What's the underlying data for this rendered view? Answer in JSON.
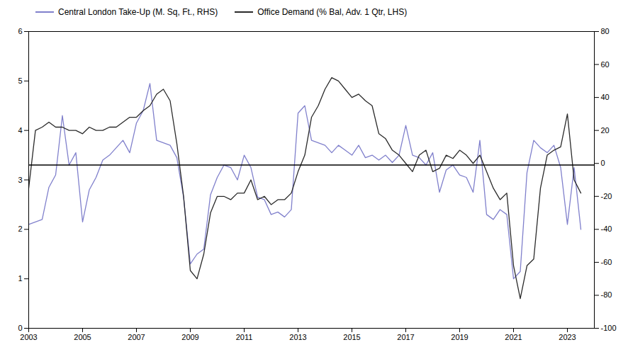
{
  "chart_data": {
    "type": "line",
    "x": [
      2003,
      2003.25,
      2003.5,
      2003.75,
      2004,
      2004.25,
      2004.5,
      2004.75,
      2005,
      2005.25,
      2005.5,
      2005.75,
      2006,
      2006.25,
      2006.5,
      2006.75,
      2007,
      2007.25,
      2007.5,
      2007.75,
      2008,
      2008.25,
      2008.5,
      2008.75,
      2009,
      2009.25,
      2009.5,
      2009.75,
      2010,
      2010.25,
      2010.5,
      2010.75,
      2011,
      2011.25,
      2011.5,
      2011.75,
      2012,
      2012.25,
      2012.5,
      2012.75,
      2013,
      2013.25,
      2013.5,
      2013.75,
      2014,
      2014.25,
      2014.5,
      2014.75,
      2015,
      2015.25,
      2015.5,
      2015.75,
      2016,
      2016.25,
      2016.5,
      2016.75,
      2017,
      2017.25,
      2017.5,
      2017.75,
      2018,
      2018.25,
      2018.5,
      2018.75,
      2019,
      2019.25,
      2019.5,
      2019.75,
      2020,
      2020.25,
      2020.5,
      2020.75,
      2021,
      2021.25,
      2021.5,
      2021.75,
      2022,
      2022.25,
      2022.5,
      2022.75,
      2023,
      2023.25,
      2023.5
    ],
    "series": [
      {
        "name": "Central London Take-Up (M. Sq, Ft., RHS)",
        "color": "#8080cc",
        "values": [
          2.1,
          2.15,
          2.2,
          2.85,
          3.1,
          4.3,
          3.3,
          3.55,
          2.15,
          2.8,
          3.05,
          3.4,
          3.5,
          3.65,
          3.8,
          3.55,
          4.15,
          4.4,
          4.95,
          3.8,
          3.75,
          3.7,
          3.45,
          2.65,
          1.3,
          1.5,
          1.6,
          2.7,
          3.05,
          3.3,
          3.25,
          3.0,
          3.5,
          3.25,
          2.65,
          2.6,
          2.3,
          2.35,
          2.25,
          2.4,
          4.35,
          4.5,
          3.8,
          3.75,
          3.7,
          3.55,
          3.7,
          3.6,
          3.5,
          3.7,
          3.45,
          3.5,
          3.4,
          3.5,
          3.35,
          3.5,
          4.1,
          3.5,
          3.45,
          3.3,
          3.55,
          2.75,
          3.2,
          3.3,
          3.1,
          3.05,
          2.75,
          3.8,
          2.3,
          2.2,
          2.4,
          2.3,
          1.0,
          1.15,
          3.15,
          3.8,
          3.65,
          3.55,
          3.7,
          3.25,
          2.1,
          3.25,
          2.0
        ]
      },
      {
        "name": "Office Demand (% Bal, Adv. 1 Qtr, LHS)",
        "color": "#2a2a2a",
        "axis": "y2",
        "values": [
          -15,
          20,
          22,
          25,
          22,
          22,
          20,
          20,
          18,
          22,
          20,
          20,
          22,
          22,
          25,
          28,
          28,
          32,
          35,
          42,
          45,
          38,
          12,
          -20,
          -65,
          -70,
          -55,
          -30,
          -20,
          -20,
          -22,
          -18,
          -18,
          -10,
          -22,
          -20,
          -25,
          -22,
          -22,
          -18,
          -5,
          5,
          28,
          35,
          45,
          52,
          50,
          45,
          40,
          42,
          38,
          35,
          18,
          15,
          8,
          5,
          0,
          -5,
          5,
          8,
          -5,
          -3,
          5,
          3,
          8,
          5,
          0,
          5,
          -5,
          -15,
          -22,
          -18,
          -62,
          -82,
          -62,
          -58,
          -15,
          5,
          8,
          10,
          30,
          -10,
          -18
        ]
      }
    ],
    "xlim": [
      2003,
      2024
    ],
    "xticks": [
      2003,
      2005,
      2007,
      2009,
      2011,
      2013,
      2015,
      2017,
      2019,
      2021,
      2023
    ],
    "ylim": [
      0,
      6
    ],
    "yticks": [
      0,
      1,
      2,
      3,
      4,
      5,
      6
    ],
    "y2lim": [
      -100,
      80
    ],
    "y2ticks": [
      -100,
      -80,
      -60,
      -40,
      -20,
      0,
      20,
      40,
      60,
      80
    ],
    "hlines": [
      3.3
    ],
    "legend": "upper left",
    "grid": false
  }
}
